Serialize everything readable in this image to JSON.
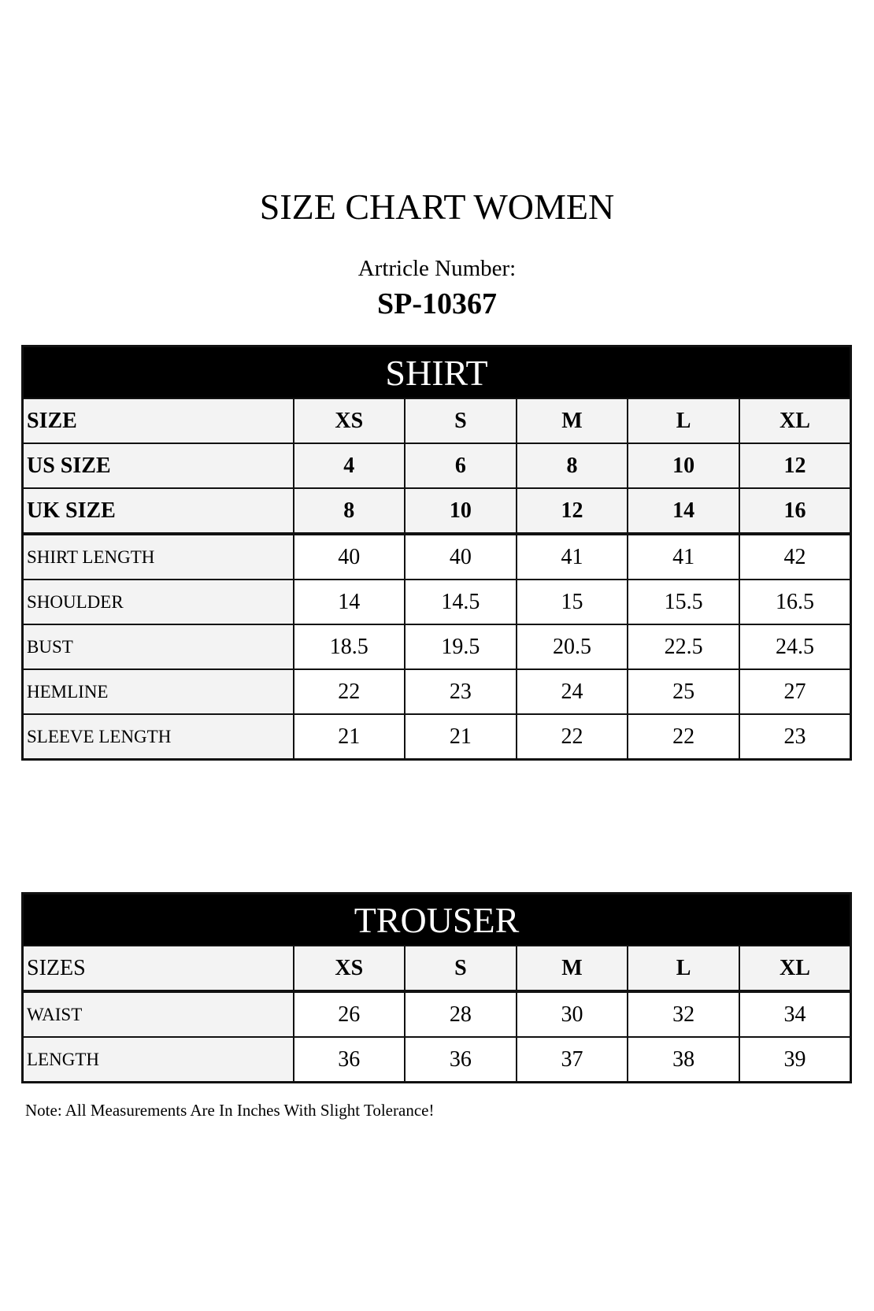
{
  "title": "SIZE CHART WOMEN",
  "article_label": "Artricle Number:",
  "article_number": "SP-10367",
  "shirt": {
    "heading": "SHIRT",
    "size_rows": [
      {
        "label": "SIZE",
        "values": [
          "XS",
          "S",
          "M",
          "L",
          "XL"
        ]
      },
      {
        "label": "US SIZE",
        "values": [
          "4",
          "6",
          "8",
          "10",
          "12"
        ]
      },
      {
        "label": "UK SIZE",
        "values": [
          "8",
          "10",
          "12",
          "14",
          "16"
        ]
      }
    ],
    "rows": [
      {
        "label": "SHIRT LENGTH",
        "values": [
          "40",
          "40",
          "41",
          "41",
          "42"
        ]
      },
      {
        "label": "SHOULDER",
        "values": [
          "14",
          "14.5",
          "15",
          "15.5",
          "16.5"
        ]
      },
      {
        "label": "BUST",
        "values": [
          "18.5",
          "19.5",
          "20.5",
          "22.5",
          "24.5"
        ]
      },
      {
        "label": "HEMLINE",
        "values": [
          "22",
          "23",
          "24",
          "25",
          "27"
        ]
      },
      {
        "label": "SLEEVE LENGTH",
        "values": [
          "21",
          "21",
          "22",
          "22",
          "23"
        ]
      }
    ]
  },
  "trouser": {
    "heading": "TROUSER",
    "size_row": {
      "label": "SIZES",
      "values": [
        "XS",
        "S",
        "M",
        "L",
        "XL"
      ]
    },
    "rows": [
      {
        "label": "WAIST",
        "values": [
          "26",
          "28",
          "30",
          "32",
          "34"
        ]
      },
      {
        "label": "LENGTH",
        "values": [
          "36",
          "36",
          "37",
          "38",
          "39"
        ]
      }
    ]
  },
  "note": "Note: All Measurements Are In Inches With Slight Tolerance!"
}
